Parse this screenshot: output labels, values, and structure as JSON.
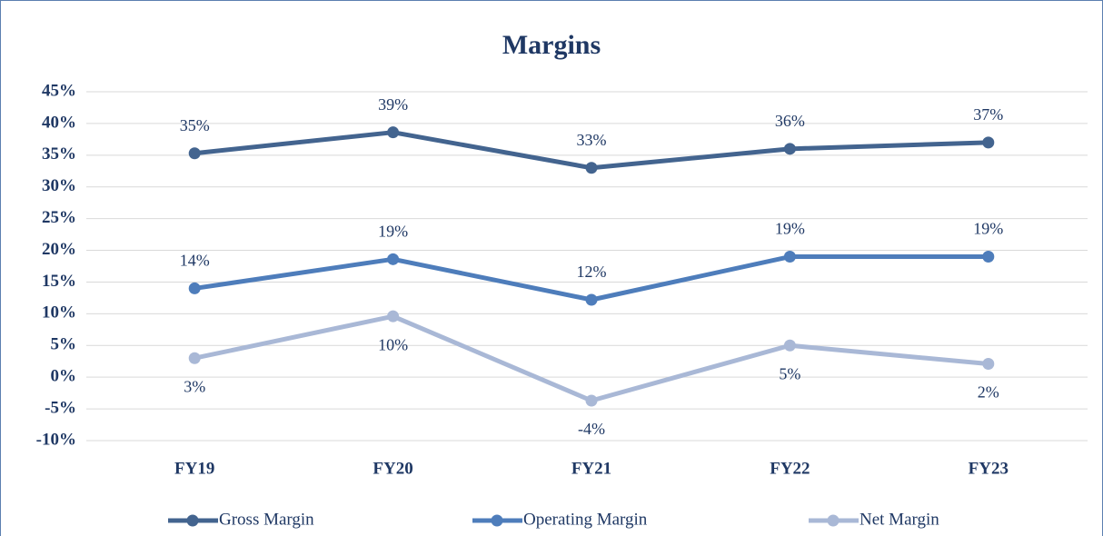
{
  "chart_data": {
    "type": "line",
    "title": "Margins",
    "categories": [
      "FY19",
      "FY20",
      "FY21",
      "FY22",
      "FY23"
    ],
    "series": [
      {
        "name": "Gross Margin",
        "color": "#43648f",
        "values": [
          35.3,
          38.6,
          33,
          36,
          37
        ],
        "value_labels": [
          "35%",
          "39%",
          "33%",
          "36%",
          "37%"
        ]
      },
      {
        "name": "Operating Margin",
        "color": "#4e7dbb",
        "values": [
          14,
          18.6,
          12.2,
          19,
          19
        ],
        "value_labels": [
          "14%",
          "19%",
          "12%",
          "19%",
          "19%"
        ]
      },
      {
        "name": "Net Margin",
        "color": "#a9b8d6",
        "values": [
          3,
          9.6,
          -3.7,
          5,
          2.1
        ],
        "value_labels": [
          "3%",
          "10%",
          "-4%",
          "5%",
          "2%"
        ]
      }
    ],
    "ylim": [
      -10,
      45
    ],
    "yticks": [
      {
        "value": -10,
        "label": "-10%"
      },
      {
        "value": -5,
        "label": "-5%"
      },
      {
        "value": 0,
        "label": "0%"
      },
      {
        "value": 5,
        "label": "5%"
      },
      {
        "value": 10,
        "label": "10%"
      },
      {
        "value": 15,
        "label": "15%"
      },
      {
        "value": 20,
        "label": "20%"
      },
      {
        "value": 25,
        "label": "25%"
      },
      {
        "value": 30,
        "label": "30%"
      },
      {
        "value": 35,
        "label": "35%"
      },
      {
        "value": 40,
        "label": "40%"
      },
      {
        "value": 45,
        "label": "45%"
      }
    ],
    "grid": true,
    "legend": "bottom"
  }
}
